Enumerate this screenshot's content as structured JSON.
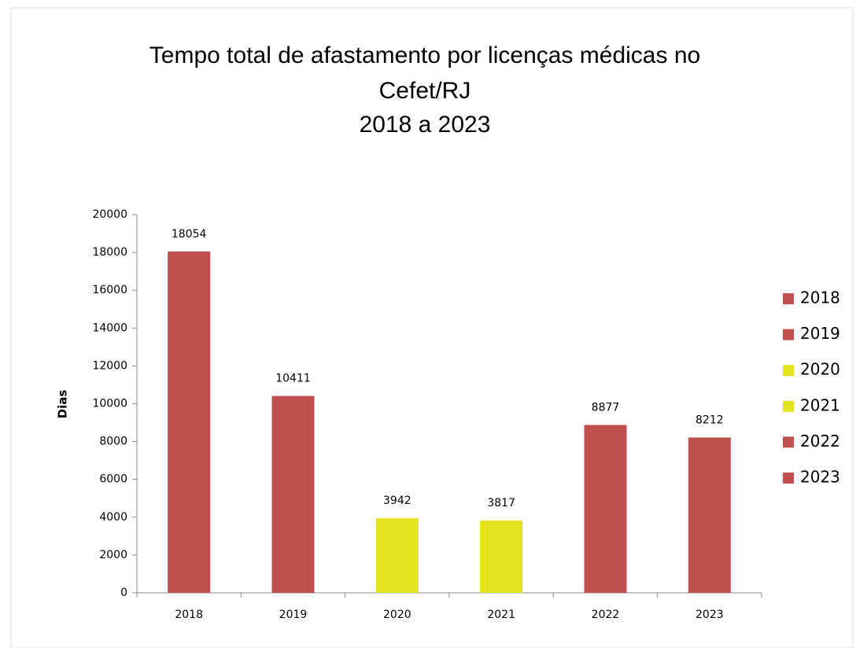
{
  "chart_data": {
    "type": "bar",
    "title": [
      "Tempo total de afastamento por licenças médicas no",
      "Cefet/RJ",
      "2018 a 2023"
    ],
    "y_label": "Dias",
    "categories": [
      "2018",
      "2019",
      "2020",
      "2021",
      "2022",
      "2023"
    ],
    "values": [
      18054,
      10411,
      3942,
      3817,
      8877,
      8212
    ],
    "colors": [
      "#c0504d",
      "#c0504d",
      "#e3e31f",
      "#e3e31f",
      "#c0504d",
      "#c0504d"
    ],
    "ylim": [
      0,
      20000
    ],
    "yticks": [
      0,
      2000,
      4000,
      6000,
      8000,
      10000,
      12000,
      14000,
      16000,
      18000,
      20000
    ],
    "legend": "right",
    "grid": false
  }
}
